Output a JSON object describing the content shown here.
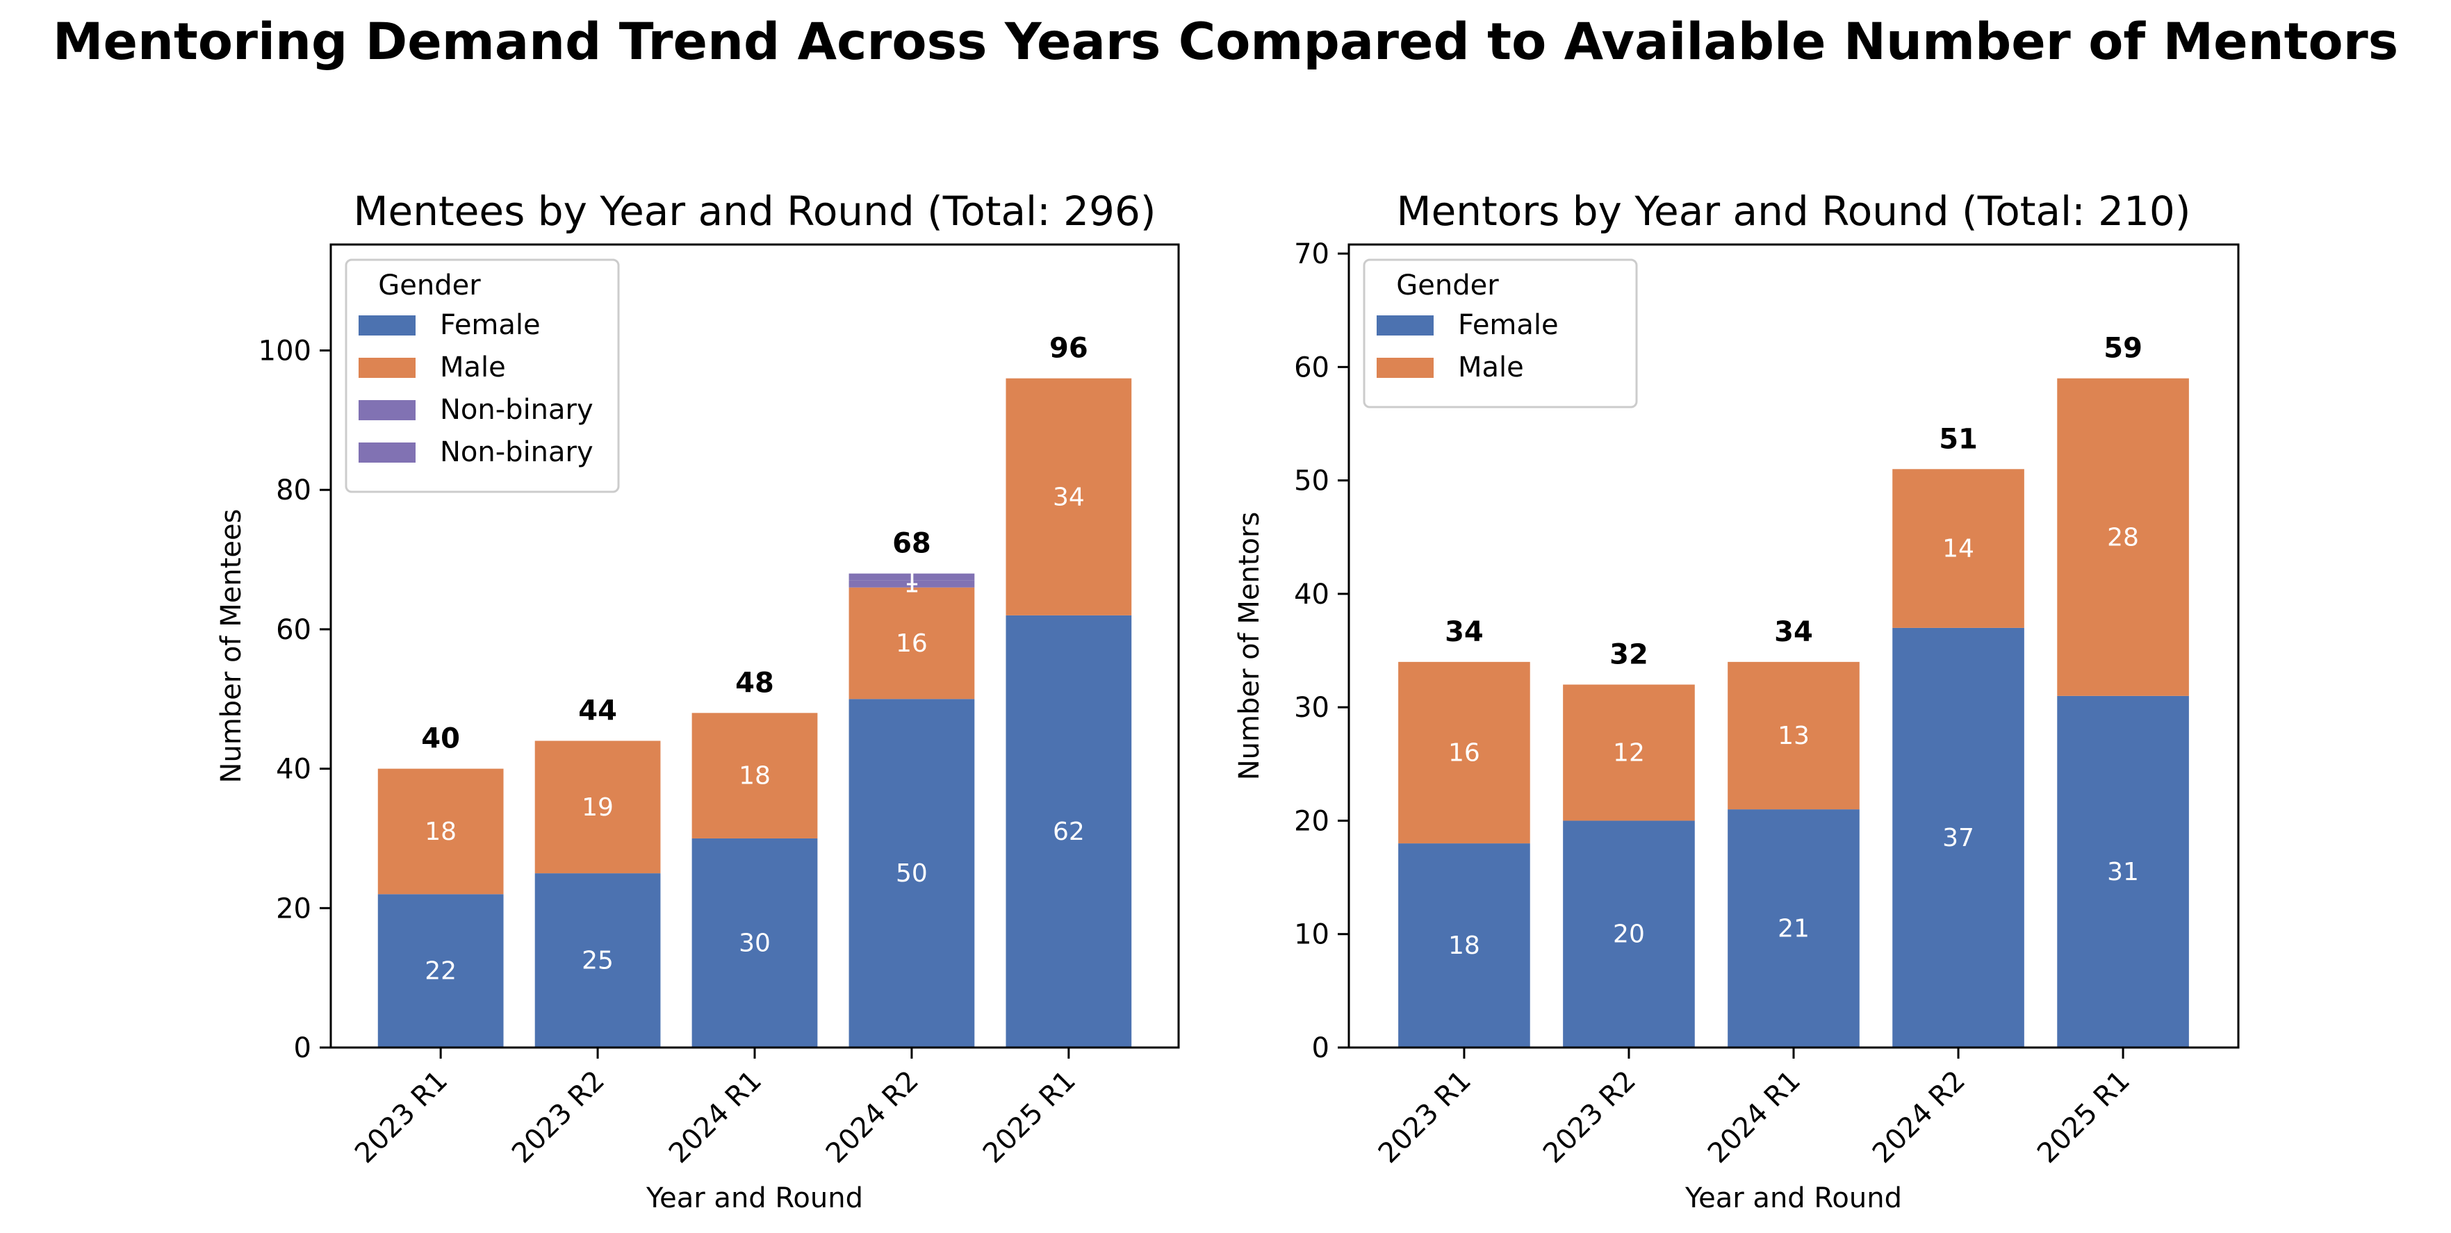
{
  "suptitle": "Mentoring Demand Trend Across Years Compared to Available Number of Mentors",
  "chart_data": [
    {
      "type": "bar",
      "stacked": true,
      "title": "Mentees by Year and Round (Total: 296)",
      "xlabel": "Year and Round",
      "ylabel": "Number of Mentees",
      "categories": [
        "2023 R1",
        "2023 R2",
        "2024 R1",
        "2024 R2",
        "2025 R1"
      ],
      "series": [
        {
          "name": "Female",
          "color": "#4c72b0",
          "values": [
            22,
            25,
            30,
            50,
            62
          ]
        },
        {
          "name": "Male",
          "color": "#dd8452",
          "values": [
            18,
            19,
            18,
            16,
            34
          ]
        },
        {
          "name": "Non-binary",
          "color": "#8172b3",
          "values": [
            0,
            0,
            0,
            1,
            0
          ]
        },
        {
          "name": "Non-binary",
          "color": "#8172b3",
          "values": [
            0,
            0,
            0,
            1,
            0
          ]
        }
      ],
      "totals": [
        40,
        44,
        48,
        68,
        96
      ],
      "ylim": [
        0,
        115.2
      ],
      "yticks": [
        0,
        20,
        40,
        60,
        80,
        100
      ],
      "legend": {
        "title": "Gender",
        "placement": "top-left"
      },
      "grid": false
    },
    {
      "type": "bar",
      "stacked": true,
      "title": "Mentors by Year and Round (Total: 210)",
      "xlabel": "Year and Round",
      "ylabel": "Number of Mentors",
      "categories": [
        "2023 R1",
        "2023 R2",
        "2024 R1",
        "2024 R2",
        "2025 R1"
      ],
      "series": [
        {
          "name": "Female",
          "color": "#4c72b0",
          "values": [
            18,
            20,
            21,
            37,
            31
          ]
        },
        {
          "name": "Male",
          "color": "#dd8452",
          "values": [
            16,
            12,
            13,
            14,
            28
          ]
        }
      ],
      "totals": [
        34,
        32,
        34,
        51,
        59
      ],
      "ylim": [
        0,
        70.8
      ],
      "yticks": [
        0,
        10,
        20,
        30,
        40,
        50,
        60,
        70
      ],
      "legend": {
        "title": "Gender",
        "placement": "top-left"
      },
      "grid": false
    }
  ]
}
